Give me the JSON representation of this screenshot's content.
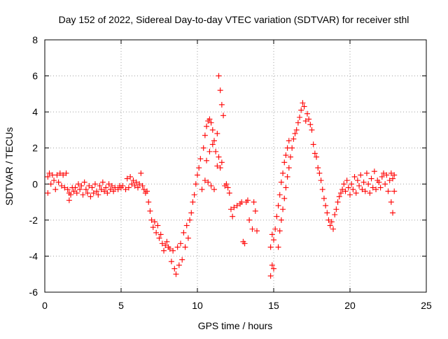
{
  "chart_data": {
    "type": "scatter",
    "title": "Day 152 of 2022, Sidereal Day-to-day VTEC variation (SDTVAR) for receiver sthl",
    "xlabel": "GPS time / hours",
    "ylabel": "SDTVAR / TECUs",
    "xlim": [
      0,
      25
    ],
    "ylim": [
      -6,
      8
    ],
    "xticks": [
      0,
      5,
      10,
      15,
      20,
      25
    ],
    "yticks": [
      -6,
      -4,
      -2,
      0,
      2,
      4,
      6,
      8
    ],
    "xtick_labels": [
      "0",
      "5",
      "10",
      "15",
      "20",
      "25"
    ],
    "ytick_labels": [
      "-6",
      "-4",
      "-2",
      "0",
      "2",
      "4",
      "6",
      "8"
    ],
    "grid": true,
    "marker": "+",
    "series_color": "#ff0000",
    "series": [
      {
        "name": "SDTVAR",
        "points": [
          [
            0.2,
            0.4
          ],
          [
            0.2,
            -0.5
          ],
          [
            0.3,
            0.6
          ],
          [
            0.4,
            0.0
          ],
          [
            0.5,
            0.5
          ],
          [
            0.6,
            0.2
          ],
          [
            0.7,
            -0.3
          ],
          [
            0.8,
            0.5
          ],
          [
            0.9,
            0.1
          ],
          [
            1.0,
            0.6
          ],
          [
            1.1,
            -0.1
          ],
          [
            1.2,
            0.5
          ],
          [
            1.3,
            -0.2
          ],
          [
            1.4,
            0.6
          ],
          [
            1.5,
            -0.3
          ],
          [
            1.6,
            -0.5
          ],
          [
            1.6,
            -0.9
          ],
          [
            1.7,
            -0.6
          ],
          [
            1.8,
            -0.2
          ],
          [
            1.9,
            -0.4
          ],
          [
            2.0,
            -0.2
          ],
          [
            2.1,
            -0.5
          ],
          [
            2.2,
            0.0
          ],
          [
            2.3,
            -0.3
          ],
          [
            2.4,
            -0.1
          ],
          [
            2.5,
            -0.6
          ],
          [
            2.6,
            0.1
          ],
          [
            2.7,
            -0.3
          ],
          [
            2.8,
            -0.5
          ],
          [
            2.9,
            -0.1
          ],
          [
            3.0,
            -0.7
          ],
          [
            3.1,
            -0.2
          ],
          [
            3.2,
            -0.5
          ],
          [
            3.3,
            0.0
          ],
          [
            3.4,
            -0.4
          ],
          [
            3.5,
            -0.6
          ],
          [
            3.6,
            -0.1
          ],
          [
            3.7,
            -0.3
          ],
          [
            3.8,
            0.1
          ],
          [
            3.9,
            -0.4
          ],
          [
            4.0,
            -0.2
          ],
          [
            4.1,
            -0.5
          ],
          [
            4.2,
            0.0
          ],
          [
            4.3,
            -0.3
          ],
          [
            4.4,
            -0.1
          ],
          [
            4.5,
            -0.4
          ],
          [
            4.6,
            -0.2
          ],
          [
            4.8,
            -0.3
          ],
          [
            4.9,
            -0.1
          ],
          [
            5.0,
            -0.2
          ],
          [
            5.1,
            -0.1
          ],
          [
            5.3,
            -0.3
          ],
          [
            5.4,
            0.3
          ],
          [
            5.5,
            -0.2
          ],
          [
            5.6,
            0.4
          ],
          [
            5.7,
            0.0
          ],
          [
            5.8,
            0.2
          ],
          [
            5.9,
            -0.1
          ],
          [
            6.0,
            0.1
          ],
          [
            6.1,
            -0.2
          ],
          [
            6.2,
            0.0
          ],
          [
            6.3,
            0.6
          ],
          [
            6.4,
            -0.1
          ],
          [
            6.5,
            -0.3
          ],
          [
            6.6,
            -0.5
          ],
          [
            6.7,
            -0.4
          ],
          [
            6.8,
            -1.0
          ],
          [
            6.9,
            -1.5
          ],
          [
            7.0,
            -2.0
          ],
          [
            7.1,
            -2.4
          ],
          [
            7.2,
            -2.1
          ],
          [
            7.3,
            -2.7
          ],
          [
            7.4,
            -2.3
          ],
          [
            7.5,
            -3.0
          ],
          [
            7.6,
            -2.8
          ],
          [
            7.7,
            -3.3
          ],
          [
            7.8,
            -3.7
          ],
          [
            7.9,
            -3.4
          ],
          [
            8.0,
            -3.2
          ],
          [
            8.1,
            -3.5
          ],
          [
            8.2,
            -3.6
          ],
          [
            8.3,
            -4.3
          ],
          [
            8.4,
            -3.7
          ],
          [
            8.5,
            -4.7
          ],
          [
            8.6,
            -5.0
          ],
          [
            8.7,
            -3.5
          ],
          [
            8.8,
            -4.5
          ],
          [
            8.9,
            -3.3
          ],
          [
            9.0,
            -4.2
          ],
          [
            9.1,
            -2.7
          ],
          [
            9.2,
            -3.5
          ],
          [
            9.3,
            -2.3
          ],
          [
            9.4,
            -3.0
          ],
          [
            9.5,
            -2.0
          ],
          [
            9.6,
            -1.6
          ],
          [
            9.7,
            -1.0
          ],
          [
            9.8,
            -0.6
          ],
          [
            9.9,
            0.0
          ],
          [
            10.0,
            0.5
          ],
          [
            10.1,
            0.9
          ],
          [
            10.2,
            1.4
          ],
          [
            10.3,
            -0.3
          ],
          [
            10.4,
            2.0
          ],
          [
            10.5,
            2.7
          ],
          [
            10.5,
            0.2
          ],
          [
            10.6,
            3.2
          ],
          [
            10.6,
            1.3
          ],
          [
            10.7,
            3.5
          ],
          [
            10.7,
            0.1
          ],
          [
            10.8,
            3.6
          ],
          [
            10.8,
            1.8
          ],
          [
            10.9,
            3.4
          ],
          [
            10.9,
            -0.1
          ],
          [
            11.0,
            3.0
          ],
          [
            11.0,
            2.2
          ],
          [
            11.1,
            2.4
          ],
          [
            11.1,
            -0.3
          ],
          [
            11.2,
            1.8
          ],
          [
            11.3,
            2.8
          ],
          [
            11.3,
            1.0
          ],
          [
            11.4,
            6.0
          ],
          [
            11.4,
            1.5
          ],
          [
            11.5,
            5.2
          ],
          [
            11.5,
            0.9
          ],
          [
            11.6,
            4.4
          ],
          [
            11.6,
            1.2
          ],
          [
            11.7,
            3.8
          ],
          [
            11.8,
            -0.1
          ],
          [
            11.9,
            0.0
          ],
          [
            12.0,
            -0.2
          ],
          [
            12.1,
            -0.5
          ],
          [
            12.2,
            -1.4
          ],
          [
            12.3,
            -1.8
          ],
          [
            12.4,
            -1.3
          ],
          [
            12.6,
            -1.2
          ],
          [
            12.8,
            -1.1
          ],
          [
            12.9,
            -1.0
          ],
          [
            13.0,
            -3.2
          ],
          [
            13.1,
            -3.3
          ],
          [
            13.2,
            -1.0
          ],
          [
            13.3,
            -0.9
          ],
          [
            13.4,
            -2.0
          ],
          [
            13.6,
            -2.5
          ],
          [
            13.7,
            -1.0
          ],
          [
            13.8,
            -1.5
          ],
          [
            13.9,
            -2.6
          ],
          [
            14.8,
            -5.1
          ],
          [
            14.8,
            -3.5
          ],
          [
            14.9,
            -4.5
          ],
          [
            14.9,
            -2.8
          ],
          [
            15.0,
            -4.7
          ],
          [
            15.0,
            -3.1
          ],
          [
            15.1,
            -2.5
          ],
          [
            15.2,
            -1.8
          ],
          [
            15.3,
            -3.5
          ],
          [
            15.3,
            -1.2
          ],
          [
            15.4,
            -2.6
          ],
          [
            15.4,
            -0.6
          ],
          [
            15.5,
            -2.0
          ],
          [
            15.5,
            0.1
          ],
          [
            15.6,
            -1.4
          ],
          [
            15.6,
            0.6
          ],
          [
            15.7,
            -0.8
          ],
          [
            15.7,
            1.2
          ],
          [
            15.8,
            -0.2
          ],
          [
            15.8,
            1.6
          ],
          [
            15.9,
            0.4
          ],
          [
            15.9,
            2.0
          ],
          [
            16.0,
            0.9
          ],
          [
            16.0,
            2.4
          ],
          [
            16.1,
            1.5
          ],
          [
            16.2,
            2.0
          ],
          [
            16.3,
            2.5
          ],
          [
            16.4,
            2.8
          ],
          [
            16.5,
            3.0
          ],
          [
            16.6,
            3.4
          ],
          [
            16.7,
            3.7
          ],
          [
            16.8,
            4.1
          ],
          [
            16.9,
            4.5
          ],
          [
            17.0,
            4.3
          ],
          [
            17.1,
            3.5
          ],
          [
            17.2,
            3.9
          ],
          [
            17.3,
            3.6
          ],
          [
            17.4,
            3.3
          ],
          [
            17.5,
            3.0
          ],
          [
            17.6,
            2.2
          ],
          [
            17.7,
            1.7
          ],
          [
            17.8,
            1.5
          ],
          [
            17.9,
            0.9
          ],
          [
            18.0,
            0.6
          ],
          [
            18.1,
            0.2
          ],
          [
            18.2,
            -0.3
          ],
          [
            18.3,
            -0.8
          ],
          [
            18.4,
            -1.2
          ],
          [
            18.5,
            -1.6
          ],
          [
            18.6,
            -2.0
          ],
          [
            18.7,
            -2.3
          ],
          [
            18.8,
            -2.1
          ],
          [
            18.9,
            -2.5
          ],
          [
            19.0,
            -1.7
          ],
          [
            19.1,
            -1.4
          ],
          [
            19.2,
            -1.0
          ],
          [
            19.3,
            -0.7
          ],
          [
            19.4,
            -0.5
          ],
          [
            19.5,
            -0.3
          ],
          [
            19.6,
            0.0
          ],
          [
            19.7,
            -0.4
          ],
          [
            19.8,
            0.2
          ],
          [
            19.9,
            -0.2
          ],
          [
            20.0,
            -0.6
          ],
          [
            20.1,
            0.0
          ],
          [
            20.2,
            -0.3
          ],
          [
            20.3,
            0.4
          ],
          [
            20.4,
            -0.5
          ],
          [
            20.5,
            0.2
          ],
          [
            20.6,
            -0.1
          ],
          [
            20.7,
            0.5
          ],
          [
            20.8,
            -0.3
          ],
          [
            20.9,
            0.1
          ],
          [
            21.0,
            -0.4
          ],
          [
            21.1,
            0.6
          ],
          [
            21.2,
            0.0
          ],
          [
            21.3,
            -0.5
          ],
          [
            21.4,
            0.3
          ],
          [
            21.5,
            -0.2
          ],
          [
            21.6,
            0.7
          ],
          [
            21.7,
            -0.3
          ],
          [
            21.8,
            0.2
          ],
          [
            21.9,
            0.1
          ],
          [
            22.0,
            -0.2
          ],
          [
            22.1,
            0.4
          ],
          [
            22.2,
            0.6
          ],
          [
            22.3,
            0.0
          ],
          [
            22.4,
            0.5
          ],
          [
            22.5,
            -0.4
          ],
          [
            22.6,
            0.2
          ],
          [
            22.7,
            -1.0
          ],
          [
            22.7,
            0.6
          ],
          [
            22.8,
            -1.6
          ],
          [
            22.8,
            0.3
          ],
          [
            22.9,
            0.5
          ],
          [
            22.9,
            -0.4
          ]
        ]
      }
    ]
  }
}
